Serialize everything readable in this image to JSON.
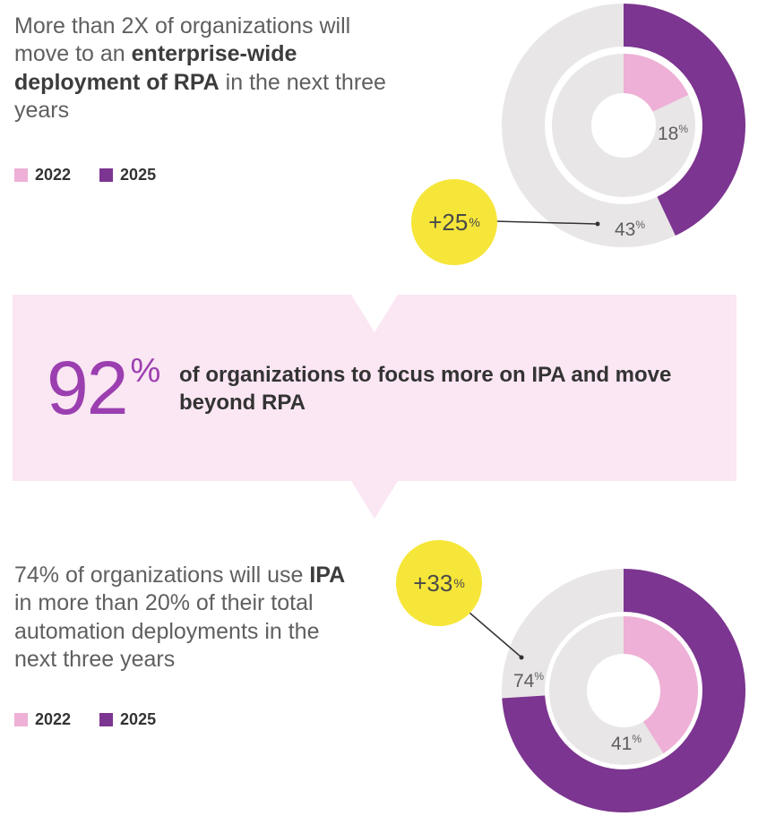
{
  "colors": {
    "c2022": "#eeb0d6",
    "c2025": "#7c3590",
    "track": "#e8e6e6",
    "badge": "#f6e639",
    "callout_bg": "#fbe6f3",
    "accent_number": "#9b3fb0"
  },
  "top_section": {
    "headline": {
      "pre": "More than 2X of organizations will move to an ",
      "bold": "enterprise-wide deployment of RPA",
      "post": " in the next three years"
    },
    "legend": [
      {
        "label": "2022"
      },
      {
        "label": "2025"
      }
    ],
    "badge": {
      "value": "+25",
      "unit": "%"
    }
  },
  "callout": {
    "number": "92",
    "unit": "%",
    "text": "of organizations to focus more on IPA and move beyond RPA"
  },
  "bottom_section": {
    "headline": {
      "pre": "74% of organizations will use ",
      "bold": "IPA",
      "post": " in more than 20% of their total automation deployments in the next three years"
    },
    "legend": [
      {
        "label": "2022"
      },
      {
        "label": "2025"
      }
    ],
    "badge": {
      "value": "+33",
      "unit": "%"
    }
  },
  "chart_data": [
    {
      "type": "pie",
      "title": "Enterprise-wide deployment of RPA",
      "categories": [
        "2022",
        "2025"
      ],
      "values": [
        18,
        43
      ],
      "labels": [
        {
          "value": "18",
          "unit": "%"
        },
        {
          "value": "43",
          "unit": "%"
        }
      ],
      "difference": "+25%"
    },
    {
      "type": "pie",
      "title": "IPA in more than 20% of total automation deployments",
      "categories": [
        "2022",
        "2025"
      ],
      "values": [
        41,
        74
      ],
      "labels": [
        {
          "value": "41",
          "unit": "%"
        },
        {
          "value": "74",
          "unit": "%"
        }
      ],
      "difference": "+33%"
    }
  ]
}
